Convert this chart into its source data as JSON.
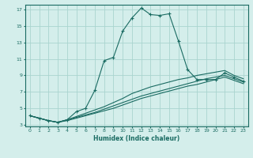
{
  "xlabel": "Humidex (Indice chaleur)",
  "bg_color": "#d4eeeb",
  "grid_color": "#aad4cf",
  "line_color": "#1a6b62",
  "xlim": [
    -0.5,
    23.5
  ],
  "ylim": [
    2.8,
    17.6
  ],
  "yticks": [
    3,
    5,
    7,
    9,
    11,
    13,
    15,
    17
  ],
  "xticks": [
    0,
    1,
    2,
    3,
    4,
    5,
    6,
    7,
    8,
    9,
    10,
    11,
    12,
    13,
    14,
    15,
    16,
    17,
    18,
    19,
    20,
    21,
    22,
    23
  ],
  "series1_x": [
    0,
    1,
    2,
    3,
    4,
    5,
    6,
    7,
    8,
    9,
    10,
    11,
    12,
    13,
    14,
    15,
    16,
    17,
    18,
    19,
    20,
    21,
    22,
    23
  ],
  "series1_y": [
    4.1,
    3.8,
    3.5,
    3.3,
    3.6,
    4.6,
    5.0,
    7.2,
    10.8,
    11.2,
    14.4,
    16.0,
    17.2,
    16.4,
    16.3,
    16.5,
    13.2,
    9.7,
    8.5,
    8.5,
    8.5,
    9.3,
    8.8,
    8.3
  ],
  "series2_x": [
    0,
    1,
    2,
    3,
    4,
    5,
    6,
    7,
    8,
    9,
    10,
    11,
    12,
    13,
    14,
    15,
    16,
    17,
    18,
    19,
    20,
    21,
    22,
    23
  ],
  "series2_y": [
    4.1,
    3.8,
    3.5,
    3.3,
    3.6,
    4.0,
    4.4,
    4.8,
    5.2,
    5.7,
    6.2,
    6.8,
    7.2,
    7.6,
    7.9,
    8.2,
    8.5,
    8.7,
    9.0,
    9.2,
    9.4,
    9.6,
    9.0,
    8.6
  ],
  "series3_x": [
    0,
    1,
    2,
    3,
    4,
    5,
    6,
    7,
    8,
    9,
    10,
    11,
    12,
    13,
    14,
    15,
    16,
    17,
    18,
    19,
    20,
    21,
    22,
    23
  ],
  "series3_y": [
    4.1,
    3.8,
    3.5,
    3.3,
    3.6,
    3.9,
    4.2,
    4.5,
    4.9,
    5.3,
    5.7,
    6.1,
    6.5,
    6.8,
    7.1,
    7.4,
    7.7,
    8.0,
    8.3,
    8.6,
    8.8,
    9.0,
    8.6,
    8.2
  ],
  "series4_x": [
    0,
    1,
    2,
    3,
    4,
    5,
    6,
    7,
    8,
    9,
    10,
    11,
    12,
    13,
    14,
    15,
    16,
    17,
    18,
    19,
    20,
    21,
    22,
    23
  ],
  "series4_y": [
    4.1,
    3.8,
    3.5,
    3.3,
    3.5,
    3.8,
    4.1,
    4.4,
    4.7,
    5.0,
    5.4,
    5.8,
    6.2,
    6.5,
    6.8,
    7.1,
    7.4,
    7.7,
    7.9,
    8.2,
    8.5,
    8.8,
    8.4,
    8.0
  ]
}
